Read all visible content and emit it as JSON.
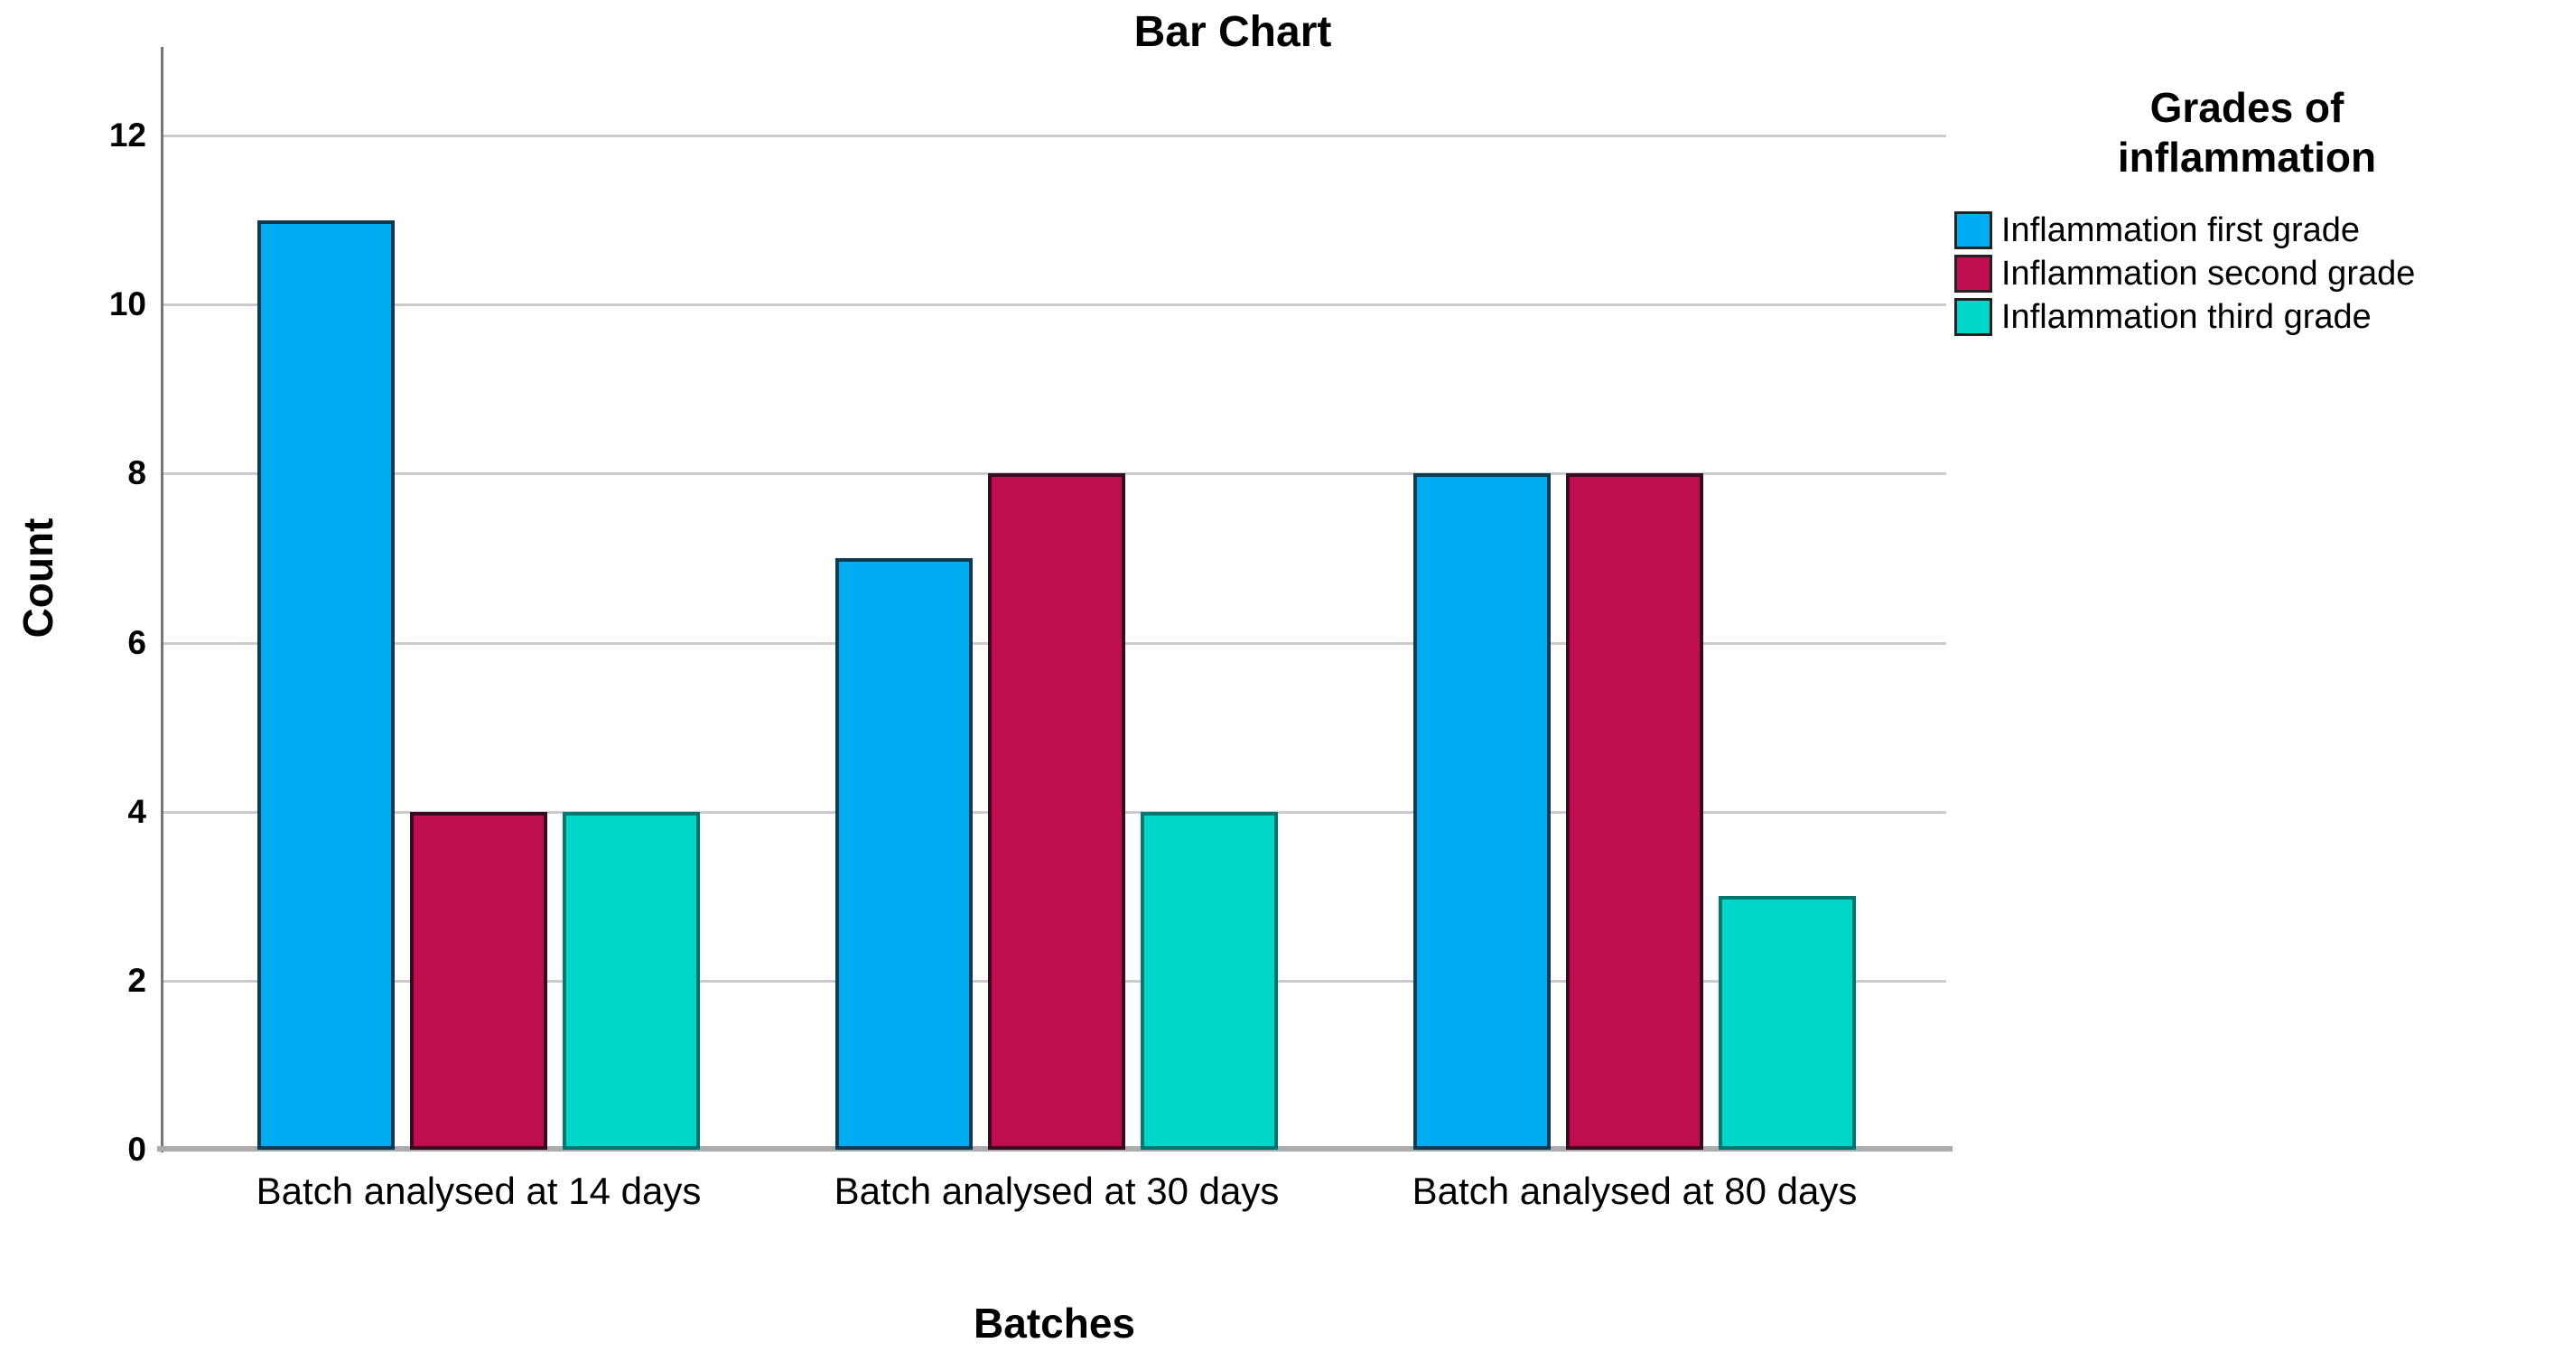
{
  "chart_data": {
    "type": "bar",
    "title": "Bar Chart",
    "xlabel": "Batches",
    "ylabel": "Count",
    "categories": [
      "Batch analysed at 14 days",
      "Batch analysed at 30 days",
      "Batch analysed at 80 days"
    ],
    "series": [
      {
        "name": "Inflammation first grade",
        "color": "#00ADF2",
        "border_color": "#0b3a52",
        "values": [
          11,
          7,
          8
        ]
      },
      {
        "name": "Inflammation second grade",
        "color": "#BF0E50",
        "border_color": "#3a0820",
        "values": [
          4,
          8,
          8
        ]
      },
      {
        "name": "Inflammation third grade",
        "color": "#00D6C9",
        "border_color": "#00766e",
        "values": [
          4,
          4,
          3
        ]
      }
    ],
    "ylim": [
      0,
      12
    ],
    "yticks": [
      0,
      2,
      4,
      6,
      8,
      10,
      12
    ],
    "grid": true,
    "legend_title": "Grades of\ninflammation",
    "legend_position": "right"
  }
}
